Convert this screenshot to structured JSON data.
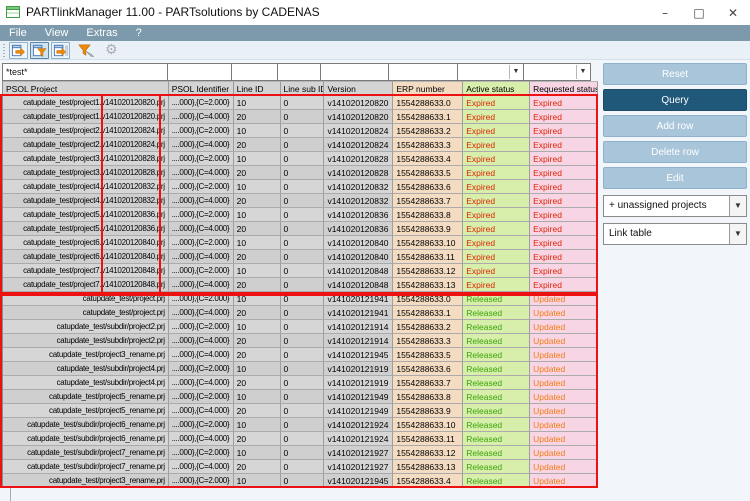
{
  "window": {
    "title": "PARTlinkManager 11.00 - PARTsolutions by CADENAS",
    "controls": [
      {
        "name": "minimize",
        "glyph": "–"
      },
      {
        "name": "maximize",
        "glyph": "□"
      },
      {
        "name": "close",
        "glyph": "✕"
      }
    ]
  },
  "menu": {
    "items": [
      "File",
      "View",
      "Extras",
      "?"
    ]
  },
  "toolbar": {
    "icons": [
      {
        "name": "link-table-icon",
        "state": "normal"
      },
      {
        "name": "filter-view-icon",
        "state": "pressed"
      },
      {
        "name": "table-columns-icon",
        "state": "normal"
      },
      {
        "name": "edit-filter-icon",
        "state": "plain"
      },
      {
        "name": "settings-gear-icon",
        "state": "disabled",
        "glyph": "⚙"
      }
    ]
  },
  "table": {
    "filter_cells": [
      {
        "value": "*test*",
        "arrow": false
      },
      {
        "value": "",
        "arrow": false
      },
      {
        "value": "",
        "arrow": false
      },
      {
        "value": "",
        "arrow": false
      },
      {
        "value": "",
        "arrow": false
      },
      {
        "value": "",
        "arrow": false
      },
      {
        "value": "",
        "arrow": true
      },
      {
        "value": "",
        "arrow": true
      }
    ],
    "columns": [
      "PSOL Project",
      "PSOL Identifier",
      "Line ID",
      "Line sub ID",
      "Version",
      "ERP number",
      "Active status",
      "Requested status"
    ],
    "rows": [
      {
        "project": "catupdate_test/project1.v141020120820.prj",
        "identifier": "....000},{C=2.000}",
        "line_id": "10",
        "line_sub_id": "0",
        "version": "v141020120820",
        "erp": "1554288633.0",
        "active": "Expired",
        "requested": "Expired"
      },
      {
        "project": "catupdate_test/project1.v141020120820.prj",
        "identifier": "....000},{C=4.000}",
        "line_id": "20",
        "line_sub_id": "0",
        "version": "v141020120820",
        "erp": "1554288633.1",
        "active": "Expired",
        "requested": "Expired"
      },
      {
        "project": "catupdate_test/project2.v141020120824.prj",
        "identifier": "....000},{C=2.000}",
        "line_id": "10",
        "line_sub_id": "0",
        "version": "v141020120824",
        "erp": "1554288633.2",
        "active": "Expired",
        "requested": "Expired"
      },
      {
        "project": "catupdate_test/project2.v141020120824.prj",
        "identifier": "....000},{C=4.000}",
        "line_id": "20",
        "line_sub_id": "0",
        "version": "v141020120824",
        "erp": "1554288633.3",
        "active": "Expired",
        "requested": "Expired"
      },
      {
        "project": "catupdate_test/project3.v141020120828.prj",
        "identifier": "....000},{C=2.000}",
        "line_id": "10",
        "line_sub_id": "0",
        "version": "v141020120828",
        "erp": "1554288633.4",
        "active": "Expired",
        "requested": "Expired"
      },
      {
        "project": "catupdate_test/project3.v141020120828.prj",
        "identifier": "....000},{C=4.000}",
        "line_id": "20",
        "line_sub_id": "0",
        "version": "v141020120828",
        "erp": "1554288633.5",
        "active": "Expired",
        "requested": "Expired"
      },
      {
        "project": "catupdate_test/project4.v141020120832.prj",
        "identifier": "....000},{C=2.000}",
        "line_id": "10",
        "line_sub_id": "0",
        "version": "v141020120832",
        "erp": "1554288633.6",
        "active": "Expired",
        "requested": "Expired"
      },
      {
        "project": "catupdate_test/project4.v141020120832.prj",
        "identifier": "....000},{C=4.000}",
        "line_id": "20",
        "line_sub_id": "0",
        "version": "v141020120832",
        "erp": "1554288633.7",
        "active": "Expired",
        "requested": "Expired"
      },
      {
        "project": "catupdate_test/project5.v141020120836.prj",
        "identifier": "....000},{C=2.000}",
        "line_id": "10",
        "line_sub_id": "0",
        "version": "v141020120836",
        "erp": "1554288633.8",
        "active": "Expired",
        "requested": "Expired"
      },
      {
        "project": "catupdate_test/project5.v141020120836.prj",
        "identifier": "....000},{C=4.000}",
        "line_id": "20",
        "line_sub_id": "0",
        "version": "v141020120836",
        "erp": "1554288633.9",
        "active": "Expired",
        "requested": "Expired"
      },
      {
        "project": "catupdate_test/project6.v141020120840.prj",
        "identifier": "....000},{C=2.000}",
        "line_id": "10",
        "line_sub_id": "0",
        "version": "v141020120840",
        "erp": "1554288633.10",
        "active": "Expired",
        "requested": "Expired"
      },
      {
        "project": "catupdate_test/project6.v141020120840.prj",
        "identifier": "....000},{C=4.000}",
        "line_id": "20",
        "line_sub_id": "0",
        "version": "v141020120840",
        "erp": "1554288633.11",
        "active": "Expired",
        "requested": "Expired"
      },
      {
        "project": "catupdate_test/project7.v141020120848.prj",
        "identifier": "....000},{C=2.000}",
        "line_id": "10",
        "line_sub_id": "0",
        "version": "v141020120848",
        "erp": "1554288633.12",
        "active": "Expired",
        "requested": "Expired"
      },
      {
        "project": "catupdate_test/project7.v141020120848.prj",
        "identifier": "....000},{C=4.000}",
        "line_id": "20",
        "line_sub_id": "0",
        "version": "v141020120848",
        "erp": "1554288633.13",
        "active": "Expired",
        "requested": "Expired"
      },
      {
        "project": "catupdate_test/project.prj",
        "identifier": "....000},{C=2.000}",
        "line_id": "10",
        "line_sub_id": "0",
        "version": "v141020121941",
        "erp": "1554288633.0",
        "active": "Released",
        "requested": "Updated"
      },
      {
        "project": "catupdate_test/project.prj",
        "identifier": "....000},{C=4.000}",
        "line_id": "20",
        "line_sub_id": "0",
        "version": "v141020121941",
        "erp": "1554288633.1",
        "active": "Released",
        "requested": "Updated"
      },
      {
        "project": "catupdate_test/subdir/project2.prj",
        "identifier": "....000},{C=2.000}",
        "line_id": "10",
        "line_sub_id": "0",
        "version": "v141020121914",
        "erp": "1554288633.2",
        "active": "Released",
        "requested": "Updated"
      },
      {
        "project": "catupdate_test/subdir/project2.prj",
        "identifier": "....000},{C=4.000}",
        "line_id": "20",
        "line_sub_id": "0",
        "version": "v141020121914",
        "erp": "1554288633.3",
        "active": "Released",
        "requested": "Updated"
      },
      {
        "project": "catupdate_test/project3_rename.prj",
        "identifier": "....000},{C=4.000}",
        "line_id": "20",
        "line_sub_id": "0",
        "version": "v141020121945",
        "erp": "1554288633.5",
        "active": "Released",
        "requested": "Updated"
      },
      {
        "project": "catupdate_test/subdir/project4.prj",
        "identifier": "....000},{C=2.000}",
        "line_id": "10",
        "line_sub_id": "0",
        "version": "v141020121919",
        "erp": "1554288633.6",
        "active": "Released",
        "requested": "Updated"
      },
      {
        "project": "catupdate_test/subdir/project4.prj",
        "identifier": "....000},{C=4.000}",
        "line_id": "20",
        "line_sub_id": "0",
        "version": "v141020121919",
        "erp": "1554288633.7",
        "active": "Released",
        "requested": "Updated"
      },
      {
        "project": "catupdate_test/project5_rename.prj",
        "identifier": "....000},{C=2.000}",
        "line_id": "10",
        "line_sub_id": "0",
        "version": "v141020121949",
        "erp": "1554288633.8",
        "active": "Released",
        "requested": "Updated"
      },
      {
        "project": "catupdate_test/project5_rename.prj",
        "identifier": "....000},{C=4.000}",
        "line_id": "20",
        "line_sub_id": "0",
        "version": "v141020121949",
        "erp": "1554288633.9",
        "active": "Released",
        "requested": "Updated"
      },
      {
        "project": "catupdate_test/subdir/project6_rename.prj",
        "identifier": "....000},{C=2.000}",
        "line_id": "10",
        "line_sub_id": "0",
        "version": "v141020121924",
        "erp": "1554288633.10",
        "active": "Released",
        "requested": "Updated"
      },
      {
        "project": "catupdate_test/subdir/project6_rename.prj",
        "identifier": "....000},{C=4.000}",
        "line_id": "20",
        "line_sub_id": "0",
        "version": "v141020121924",
        "erp": "1554288633.11",
        "active": "Released",
        "requested": "Updated"
      },
      {
        "project": "catupdate_test/subdir/project7_rename.prj",
        "identifier": "....000},{C=2.000}",
        "line_id": "10",
        "line_sub_id": "0",
        "version": "v141020121927",
        "erp": "1554288633.12",
        "active": "Released",
        "requested": "Updated"
      },
      {
        "project": "catupdate_test/subdir/project7_rename.prj",
        "identifier": "....000},{C=4.000}",
        "line_id": "20",
        "line_sub_id": "0",
        "version": "v141020121927",
        "erp": "1554288633.13",
        "active": "Released",
        "requested": "Updated"
      },
      {
        "project": "catupdate_test/project3_rename.prj",
        "identifier": "....000},{C=2.000}",
        "line_id": "10",
        "line_sub_id": "0",
        "version": "v141020121945",
        "erp": "1554288633.4",
        "active": "Released",
        "requested": "Updated"
      }
    ]
  },
  "side_panel": {
    "buttons": [
      "Reset",
      "Query",
      "Add row",
      "Delete row",
      "Edit"
    ],
    "dropdowns": [
      {
        "label": "+ unassigned projects"
      },
      {
        "label": "Link table"
      }
    ],
    "dropdown_arrow_glyph": "▼"
  },
  "colors": {
    "menubar": "#7d9aac",
    "query_button": "#20587a",
    "light_button": "#a9c5da",
    "erp_column": "#f4dcc2",
    "active_column": "#d7efab",
    "requested_column": "#f8d5e5",
    "annotation": "#ee1111",
    "status": {
      "Expired": "#de2505",
      "Released": "#3aa30a",
      "Updated": "#f07d14"
    }
  }
}
